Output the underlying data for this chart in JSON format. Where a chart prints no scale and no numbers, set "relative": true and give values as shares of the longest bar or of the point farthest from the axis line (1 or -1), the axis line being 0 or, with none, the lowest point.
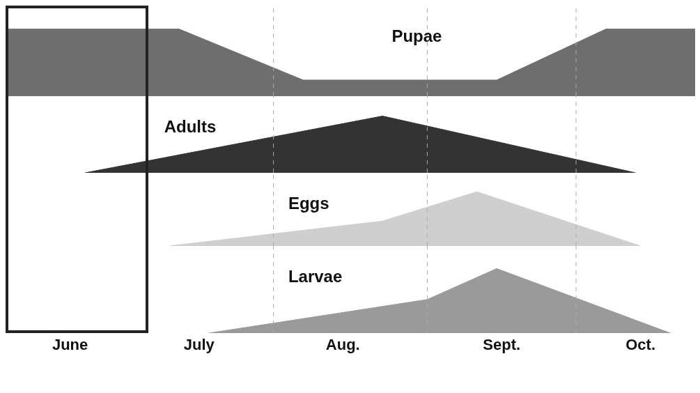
{
  "chart_data": [
    {
      "type": "area",
      "relative": true,
      "x": [
        "--06-08",
        "--07-13",
        "--08-07",
        "--09-15",
        "--10-07",
        "--10-25"
      ],
      "series": [
        {
          "name": "Pupae",
          "color": "#6e6e6e",
          "values": [
            1,
            1,
            0.24,
            0.24,
            1,
            1
          ]
        }
      ],
      "xlim": [
        "--06-08",
        "--10-25"
      ],
      "tick_labels": false,
      "grid": false,
      "legend": false,
      "ref_lines": [
        {
          "axis": "x",
          "value": "--08-01",
          "line_style": "dashed",
          "color": "#aaaaaa"
        },
        {
          "axis": "x",
          "value": "--09-01",
          "line_style": "dashed",
          "color": "#aaaaaa"
        },
        {
          "axis": "x",
          "value": "--10-01",
          "line_style": "dashed",
          "color": "#aaaaaa"
        }
      ]
    },
    {
      "type": "area",
      "relative": true,
      "x": [
        "--06-24",
        "--08-23",
        "--10-13"
      ],
      "series": [
        {
          "name": "Adults",
          "color": "#333333",
          "values": [
            0,
            1,
            0
          ]
        }
      ],
      "xlim": [
        "--06-08",
        "--10-25"
      ],
      "tick_labels": false,
      "grid": false,
      "legend": false,
      "ref_lines": [
        {
          "axis": "x",
          "value": "--08-01",
          "line_style": "dashed",
          "color": "#aaaaaa"
        },
        {
          "axis": "x",
          "value": "--09-01",
          "line_style": "dashed",
          "color": "#aaaaaa"
        },
        {
          "axis": "x",
          "value": "--10-01",
          "line_style": "dashed",
          "color": "#aaaaaa"
        }
      ]
    },
    {
      "type": "area",
      "relative": true,
      "x": [
        "--07-11",
        "--08-23",
        "--09-11",
        "--10-14"
      ],
      "series": [
        {
          "name": "Eggs",
          "color": "#cfcfcf",
          "values": [
            0,
            0.46,
            1,
            0
          ]
        }
      ],
      "xlim": [
        "--06-08",
        "--10-25"
      ],
      "tick_labels": false,
      "grid": false,
      "legend": false,
      "ref_lines": [
        {
          "axis": "x",
          "value": "--08-01",
          "line_style": "dashed",
          "color": "#aaaaaa"
        },
        {
          "axis": "x",
          "value": "--09-01",
          "line_style": "dashed",
          "color": "#aaaaaa"
        },
        {
          "axis": "x",
          "value": "--10-01",
          "line_style": "dashed",
          "color": "#aaaaaa"
        }
      ]
    },
    {
      "type": "area",
      "relative": true,
      "x": [
        "--07-19",
        "--09-01",
        "--09-15",
        "--10-20"
      ],
      "series": [
        {
          "name": "Larvae",
          "color": "#9a9a9a",
          "values": [
            0,
            0.52,
            1,
            0
          ]
        }
      ],
      "xlim": [
        "--06-08",
        "--10-25"
      ],
      "xticks": [
        {
          "value": "--06-21",
          "label": "June"
        },
        {
          "value": "--07-17",
          "label": "July"
        },
        {
          "value": "--08-15",
          "label": "Aug."
        },
        {
          "value": "--09-16",
          "label": "Sept."
        },
        {
          "value": "--10-14",
          "label": "Oct."
        }
      ],
      "tick_labels": "x",
      "grid": false,
      "legend": false,
      "ref_lines": [
        {
          "axis": "x",
          "value": "--08-01",
          "line_style": "dashed",
          "color": "#aaaaaa"
        },
        {
          "axis": "x",
          "value": "--09-01",
          "line_style": "dashed",
          "color": "#aaaaaa"
        },
        {
          "axis": "x",
          "value": "--10-01",
          "line_style": "dashed",
          "color": "#aaaaaa"
        }
      ]
    }
  ]
}
